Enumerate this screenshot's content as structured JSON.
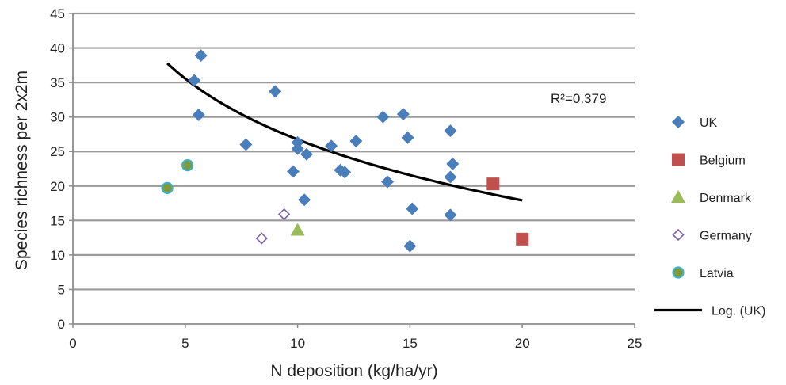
{
  "chart_data": {
    "type": "scatter",
    "xlabel": "N deposition (kg/ha/yr)",
    "ylabel": "Species richness per 2x2m",
    "xlim": [
      0,
      25
    ],
    "ylim": [
      0,
      45
    ],
    "xticks": [
      0,
      5,
      10,
      15,
      20,
      25
    ],
    "yticks": [
      0,
      5,
      10,
      15,
      20,
      25,
      30,
      35,
      40,
      45
    ],
    "grid": "horizontal",
    "legend_position": "right",
    "annotation": "R²=0.379",
    "series": [
      {
        "name": "UK",
        "marker": "diamond",
        "color": "#4a7ebb",
        "points": [
          [
            5.7,
            38.9
          ],
          [
            5.4,
            35.3
          ],
          [
            5.6,
            30.3
          ],
          [
            9.0,
            33.7
          ],
          [
            7.7,
            26.0
          ],
          [
            10.0,
            26.3
          ],
          [
            10.0,
            25.4
          ],
          [
            10.4,
            24.6
          ],
          [
            9.8,
            22.1
          ],
          [
            10.3,
            18.0
          ],
          [
            11.5,
            25.8
          ],
          [
            11.9,
            22.3
          ],
          [
            12.1,
            22.0
          ],
          [
            12.6,
            26.5
          ],
          [
            13.8,
            30.0
          ],
          [
            14.0,
            20.6
          ],
          [
            14.7,
            30.4
          ],
          [
            14.9,
            27.0
          ],
          [
            15.1,
            16.7
          ],
          [
            15.0,
            11.3
          ],
          [
            16.8,
            28.0
          ],
          [
            16.9,
            23.2
          ],
          [
            16.8,
            21.3
          ],
          [
            16.8,
            15.8
          ]
        ]
      },
      {
        "name": "Belgium",
        "marker": "square",
        "color": "#c0504d",
        "points": [
          [
            18.7,
            20.3
          ],
          [
            20.0,
            12.3
          ]
        ]
      },
      {
        "name": "Denmark",
        "marker": "triangle",
        "color": "#9bbb59",
        "points": [
          [
            10.0,
            13.6
          ]
        ]
      },
      {
        "name": "Germany",
        "marker": "open-diamond",
        "color": "#7f5fa8",
        "points": [
          [
            8.4,
            12.4
          ],
          [
            9.4,
            15.9
          ]
        ]
      },
      {
        "name": "Latvia",
        "marker": "circle",
        "color": "#7f9a3a",
        "edge_color": "#3cb0c8",
        "points": [
          [
            4.2,
            19.7
          ],
          [
            5.1,
            23.0
          ]
        ]
      },
      {
        "name": "Log. (UK)",
        "marker": "line",
        "color": "#000000",
        "fit": {
          "type": "log",
          "a": 56.05,
          "b": -12.73,
          "x_start": 4.2,
          "x_end": 20.0
        }
      }
    ]
  }
}
